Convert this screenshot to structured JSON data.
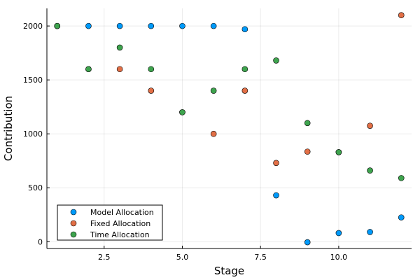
{
  "chart_data": {
    "type": "scatter",
    "title": "",
    "xlabel": "Stage",
    "ylabel": "Contribution",
    "xlim": [
      0.67,
      12.33
    ],
    "ylim": [
      -63,
      2163
    ],
    "xticks": [
      2.5,
      5.0,
      7.5,
      10.0
    ],
    "xtick_labels": [
      "2.5",
      "5.0",
      "7.5",
      "10.0"
    ],
    "yticks": [
      0,
      500,
      1000,
      1500,
      2000
    ],
    "ytick_labels": [
      "0",
      "500",
      "1000",
      "1500",
      "2000"
    ],
    "grid": true,
    "legend_position": "bottom-left",
    "series": [
      {
        "name": "Model Allocation",
        "color": "#009AFA",
        "x": [
          1,
          2,
          3,
          4,
          5,
          6,
          7,
          8,
          9,
          10,
          11,
          12
        ],
        "y": [
          2000,
          2000,
          2000,
          2000,
          2000,
          2000,
          1970,
          430,
          -5,
          80,
          90,
          225
        ]
      },
      {
        "name": "Fixed Allocation",
        "color": "#E26F46",
        "x": [
          1,
          2,
          3,
          4,
          5,
          6,
          7,
          8,
          9,
          10,
          11,
          12
        ],
        "y": [
          2000,
          1600,
          1600,
          1400,
          1200,
          1000,
          1400,
          730,
          835,
          830,
          1075,
          2100
        ]
      },
      {
        "name": "Time Allocation",
        "color": "#3EA44E",
        "x": [
          1,
          2,
          3,
          4,
          5,
          6,
          7,
          8,
          9,
          10,
          11,
          12
        ],
        "y": [
          2000,
          1600,
          1800,
          1600,
          1200,
          1400,
          1600,
          1680,
          1100,
          830,
          660,
          590
        ]
      }
    ]
  }
}
